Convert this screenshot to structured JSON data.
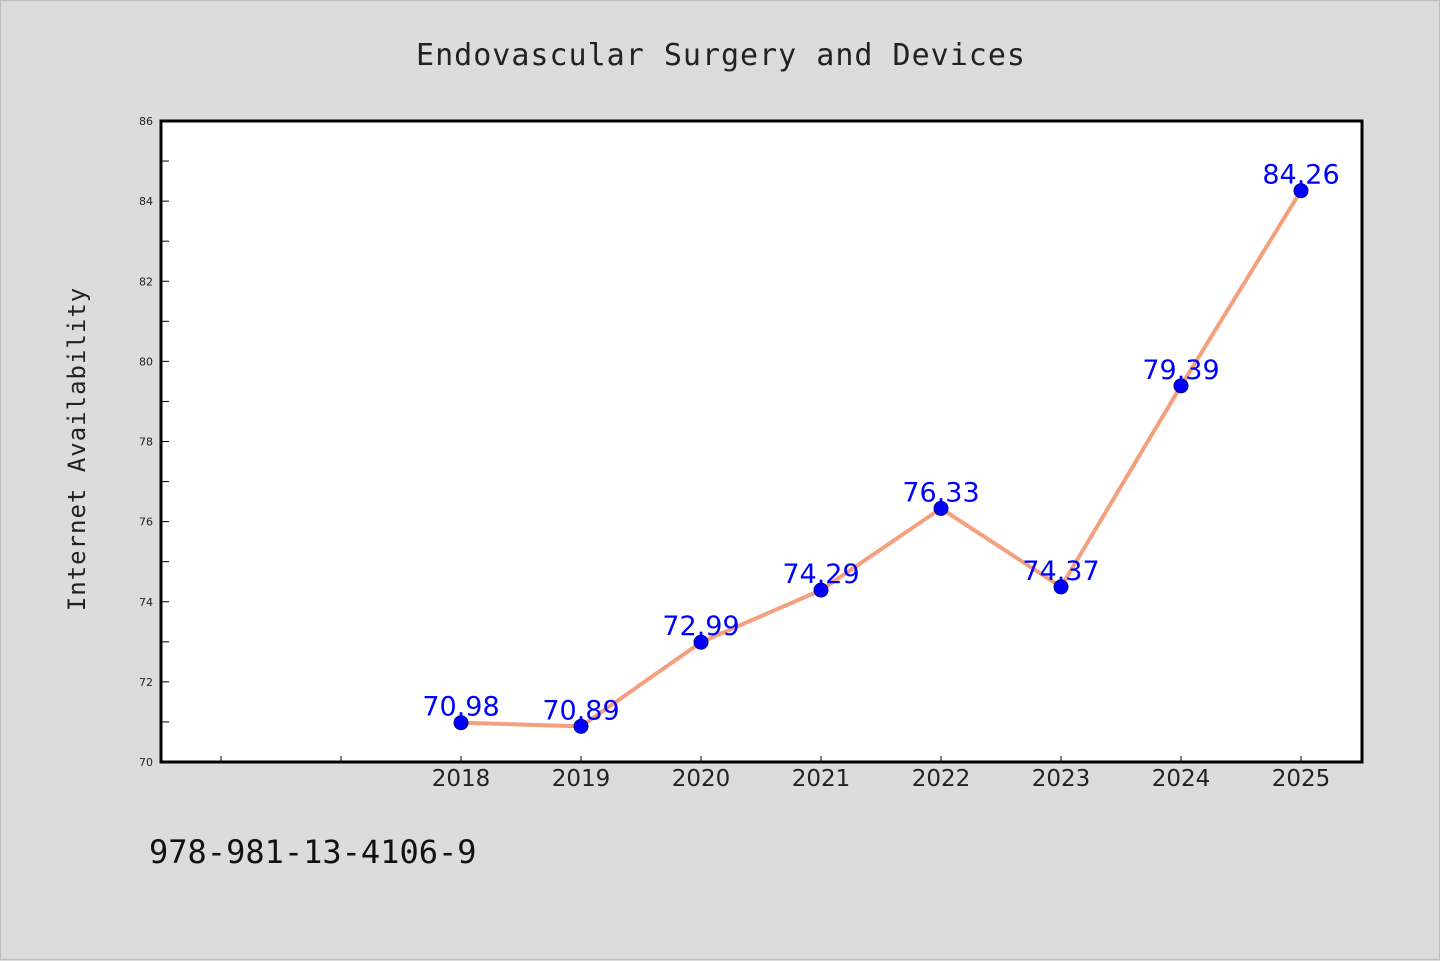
{
  "chart_data": {
    "type": "line",
    "title": "Endovascular Surgery and Devices",
    "ylabel": "Internet Availability",
    "xlabel": "",
    "x_ticks": [
      "",
      "",
      "2018",
      "2019",
      "2020",
      "2021",
      "2022",
      "2023",
      "2024",
      "2025"
    ],
    "categories": [
      "2018",
      "2019",
      "2020",
      "2021",
      "2022",
      "2023",
      "2024",
      "2025"
    ],
    "series": [
      {
        "values": [
          70.98,
          70.89,
          72.99,
          74.29,
          76.33,
          74.37,
          79.39,
          84.26
        ],
        "labels": [
          "70.98",
          "70.89",
          "72.99",
          "74.29",
          "76.33",
          "74.37",
          "79.39",
          "84.26"
        ]
      }
    ],
    "ylim": [
      70,
      86
    ],
    "y_ticks": [
      "70",
      "72",
      "74",
      "76",
      "78",
      "80",
      "82",
      "84",
      "86"
    ],
    "grid": false,
    "legend": "none",
    "colors": {
      "line": "#f4a07e",
      "marker": "#0000ff",
      "label": "#0000ff",
      "frame": "#000000"
    }
  },
  "footer": {
    "isbn": "978-981-13-4106-9"
  }
}
